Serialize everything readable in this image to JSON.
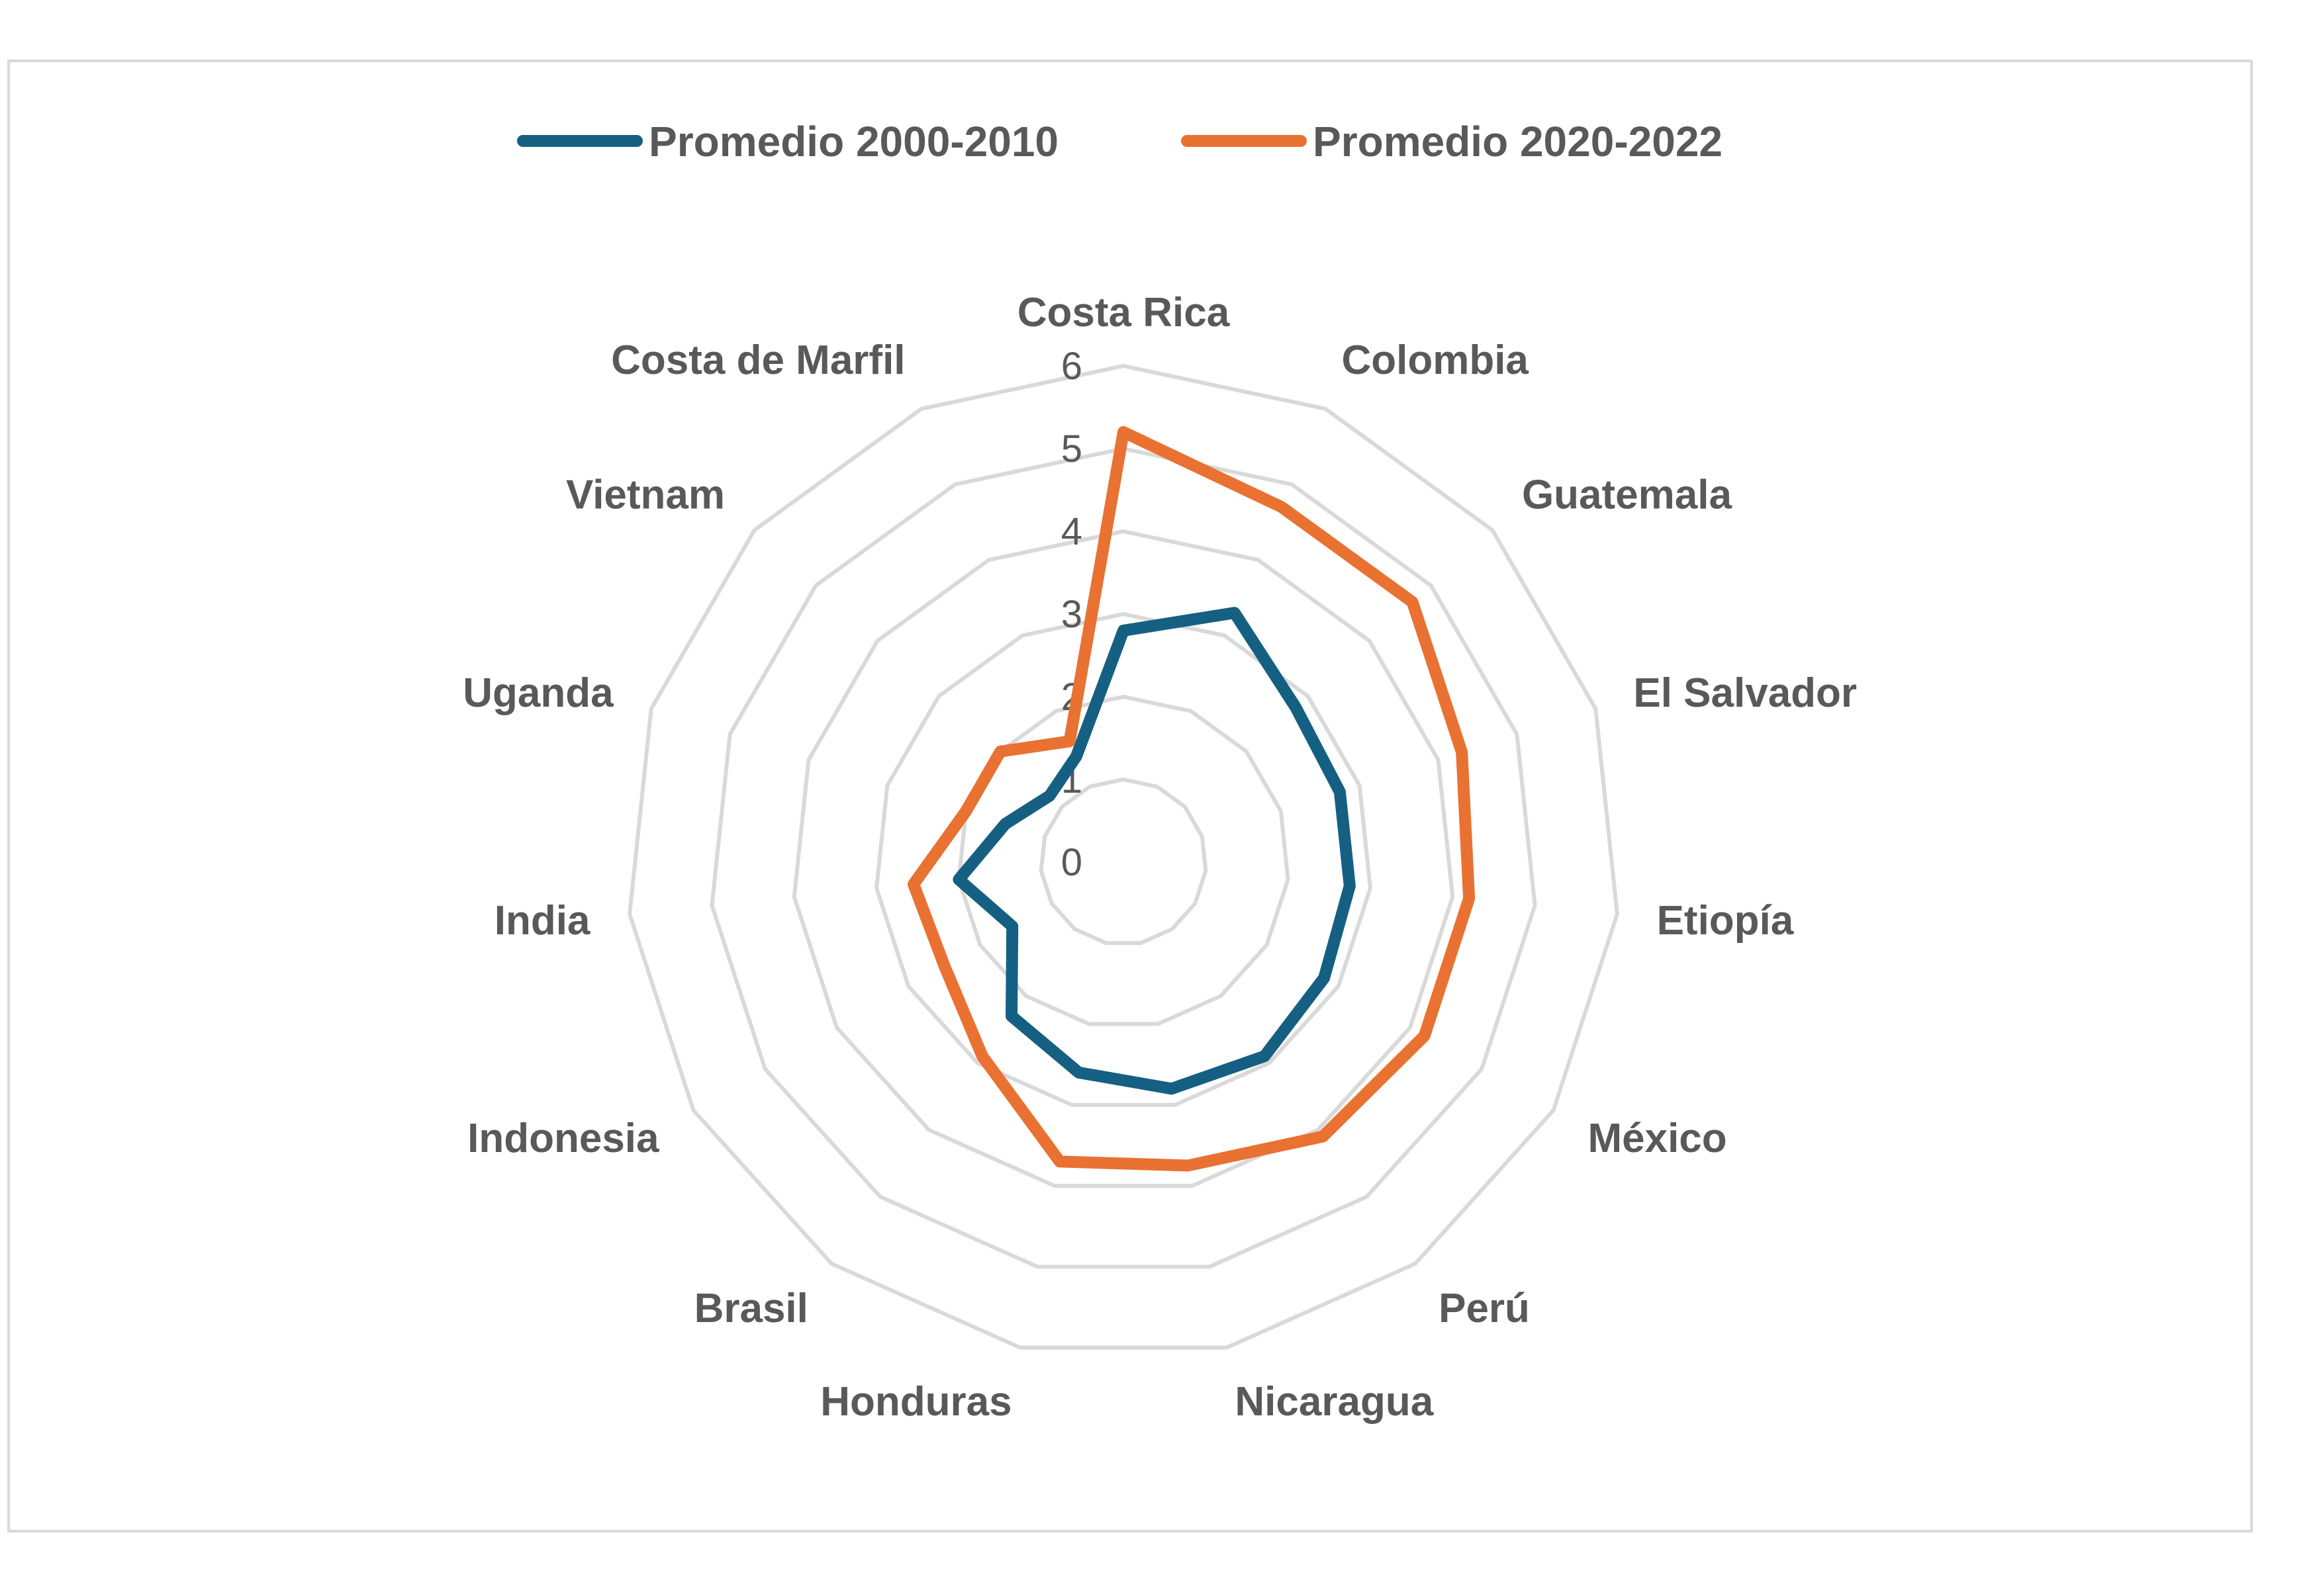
{
  "chart_data": {
    "type": "radar",
    "title": "",
    "categories": [
      "Costa Rica",
      "Colombia",
      "Guatemala",
      "El Salvador",
      "Etiopía",
      "México",
      "Perú",
      "Nicaragua",
      "Honduras",
      "Brasil",
      "Indonesia",
      "India",
      "Uganda",
      "Vietnam",
      "Costa de Marfil"
    ],
    "rlim": [
      0,
      6
    ],
    "ticks": [
      "0",
      "1",
      "2",
      "3",
      "4",
      "5",
      "6"
    ],
    "grid": true,
    "legend_position": "top",
    "series": [
      {
        "name": "Promedio 2000-2010",
        "color": "#156082",
        "values": [
          2.8,
          3.3,
          2.8,
          2.75,
          2.75,
          2.8,
          2.9,
          2.8,
          2.6,
          2.3,
          1.55,
          2.0,
          1.5,
          1.2,
          1.4
        ]
      },
      {
        "name": "Promedio 2020-2022",
        "color": "#E97132",
        "values": [
          5.2,
          4.7,
          4.7,
          4.3,
          4.2,
          4.2,
          4.1,
          3.75,
          3.7,
          2.9,
          2.5,
          2.55,
          2.0,
          2.0,
          1.6
        ]
      }
    ]
  }
}
